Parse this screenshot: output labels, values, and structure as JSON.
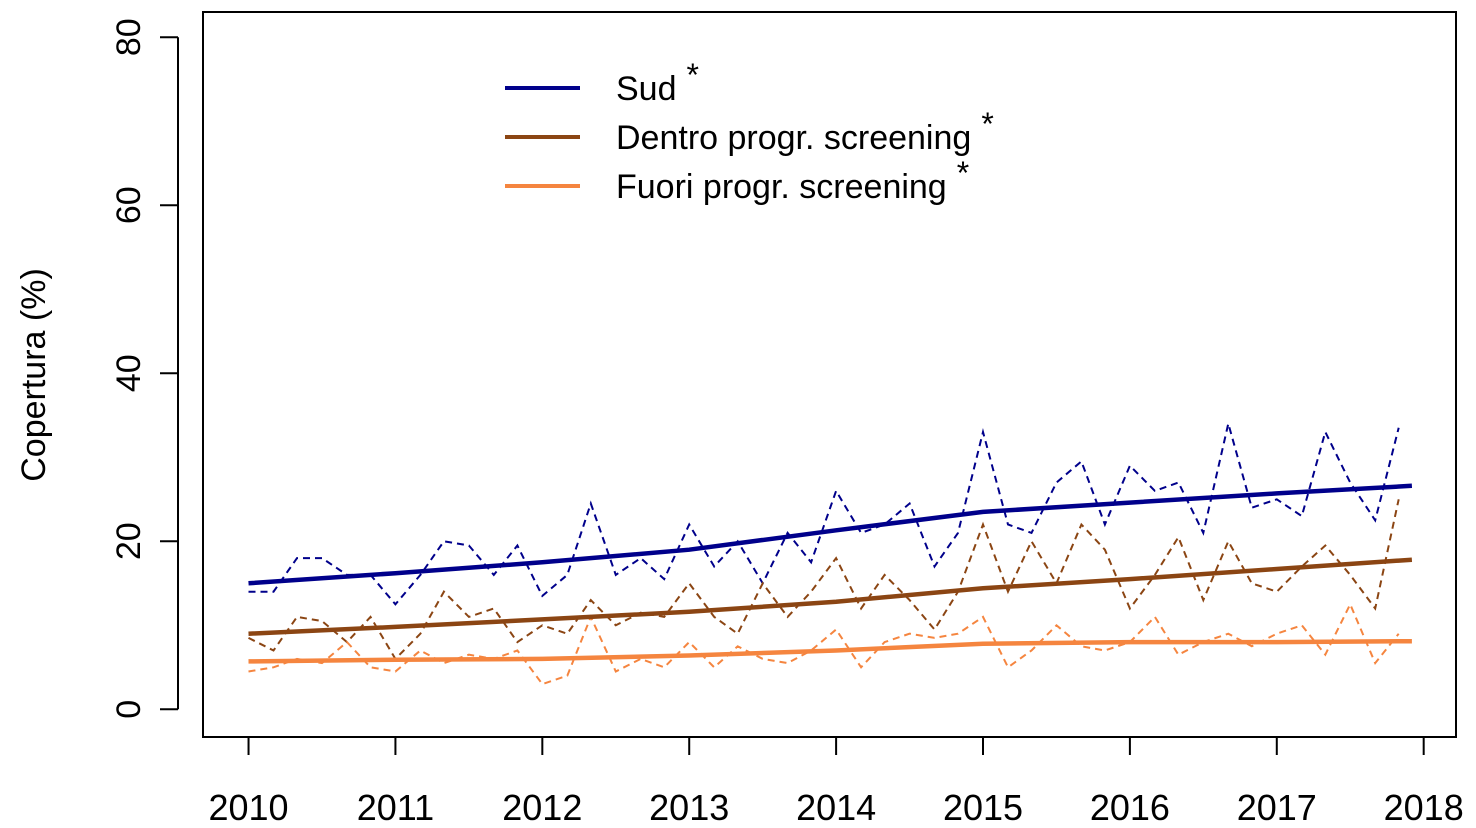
{
  "chart_data": {
    "type": "line",
    "y_label": "Copertura (%)",
    "significance_mark": "*",
    "xlim": [
      2009.69,
      2018.22
    ],
    "ylim": [
      -3.3,
      83
    ],
    "xticks": [
      2010,
      2011,
      2012,
      2013,
      2014,
      2015,
      2016,
      2017,
      2018
    ],
    "yticks": [
      0,
      20,
      40,
      60,
      80
    ],
    "x": [
      2010,
      2010.17,
      2010.33,
      2010.5,
      2010.67,
      2010.83,
      2011,
      2011.17,
      2011.33,
      2011.5,
      2011.67,
      2011.83,
      2012,
      2012.17,
      2012.33,
      2012.5,
      2012.67,
      2012.83,
      2013,
      2013.17,
      2013.33,
      2013.5,
      2013.67,
      2013.83,
      2014,
      2014.17,
      2014.33,
      2014.5,
      2014.67,
      2014.83,
      2015,
      2015.17,
      2015.33,
      2015.5,
      2015.67,
      2015.83,
      2016,
      2016.17,
      2016.33,
      2016.5,
      2016.67,
      2016.83,
      2017,
      2017.17,
      2017.33,
      2017.5,
      2017.67,
      2017.83
    ],
    "trend_x": [
      2010,
      2011,
      2012,
      2013,
      2014,
      2015,
      2016,
      2017,
      2017.92
    ],
    "series": [
      {
        "name": "Sud",
        "color": "#00008b",
        "values": [
          14,
          14,
          18,
          18,
          16,
          16,
          12.5,
          16,
          20,
          19.5,
          16,
          19.5,
          13.5,
          16,
          24.5,
          16,
          18,
          15.5,
          22,
          17,
          20,
          15,
          21,
          17.5,
          26,
          21,
          22,
          24.5,
          17,
          21,
          33,
          22,
          21,
          27,
          29.5,
          22,
          29,
          26,
          27,
          21,
          34,
          24,
          25,
          23,
          33,
          27,
          22.5,
          33.5
        ],
        "trend": [
          15,
          16.2,
          17.5,
          19,
          21.3,
          23.5,
          24.6,
          25.7,
          26.6
        ]
      },
      {
        "name": "Dentro progr. screening",
        "color": "#8b4513",
        "values": [
          8.5,
          7,
          11,
          10.5,
          8,
          11,
          6,
          9,
          14,
          11,
          12,
          8,
          10,
          9,
          13,
          10,
          11.5,
          11,
          15,
          11,
          9,
          15,
          11,
          14,
          18,
          12,
          16,
          13,
          9.5,
          14,
          22,
          14,
          20,
          15,
          22,
          19,
          12,
          16,
          20.5,
          13,
          20,
          15,
          14,
          17,
          19.5,
          16,
          12,
          25
        ],
        "trend": [
          9,
          9.8,
          10.7,
          11.6,
          12.8,
          14.4,
          15.5,
          16.7,
          17.8
        ]
      },
      {
        "name": "Fuori progr. screening",
        "color": "#f5853f",
        "values": [
          4.5,
          5,
          6,
          5.5,
          8,
          5,
          4.5,
          7,
          5.5,
          6.5,
          6,
          7,
          3,
          4,
          11,
          4.5,
          6,
          5,
          8,
          5,
          7.5,
          6,
          5.5,
          7,
          9.5,
          5,
          8,
          9,
          8.5,
          9,
          11,
          5,
          7,
          10,
          7.5,
          7,
          8,
          11,
          6.5,
          8,
          9,
          7.5,
          9,
          10,
          6.5,
          12.5,
          5.5,
          9
        ],
        "trend": [
          5.7,
          5.9,
          6.0,
          6.4,
          7.0,
          7.8,
          8.0,
          8.0,
          8.1
        ]
      }
    ]
  }
}
